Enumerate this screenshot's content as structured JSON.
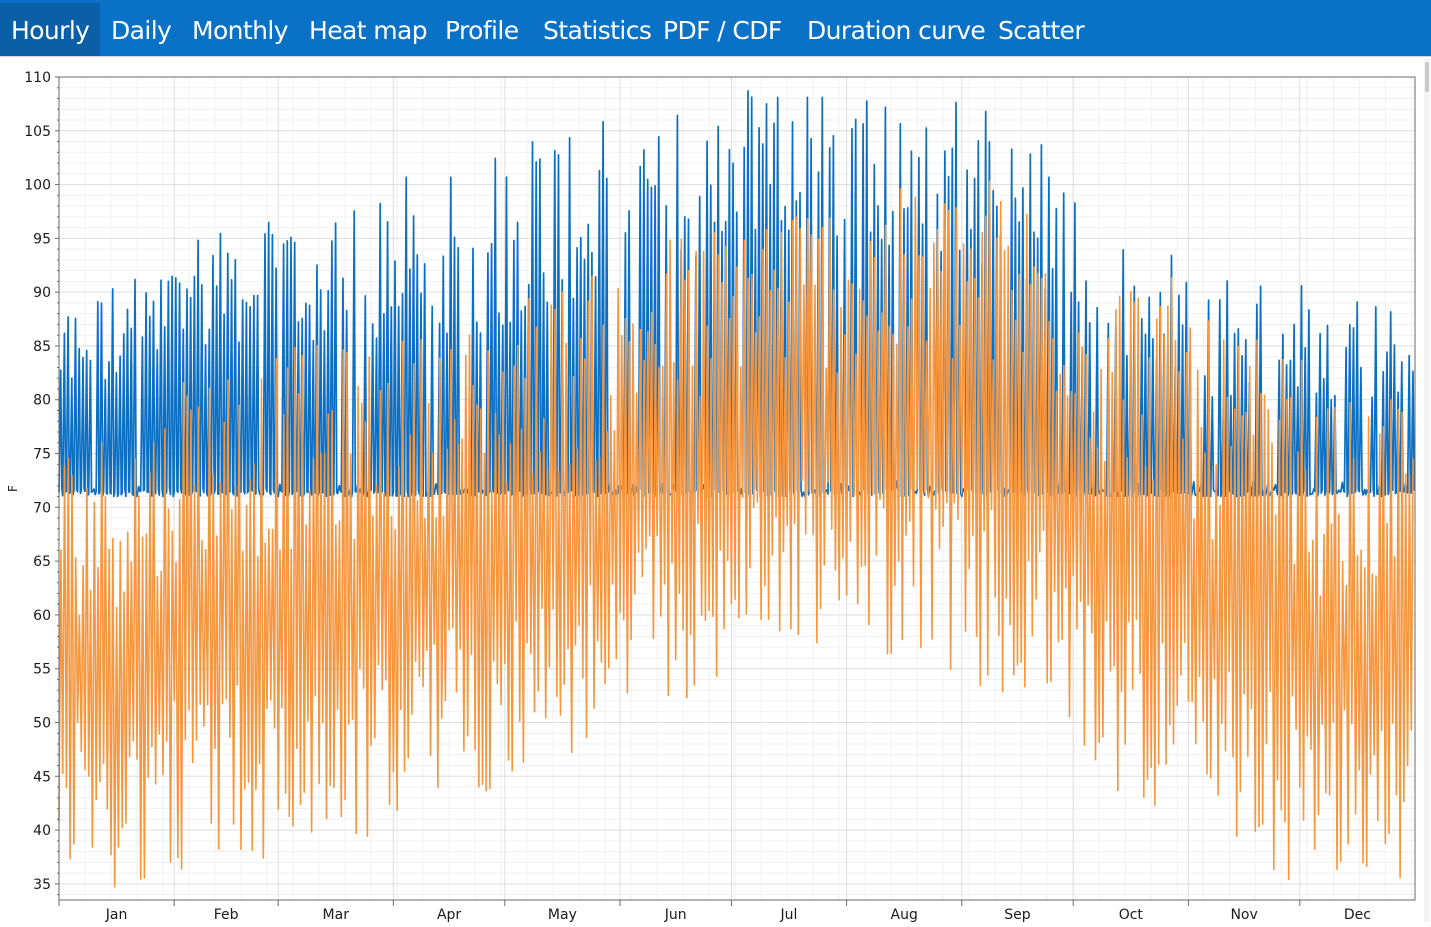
{
  "tabs": [
    {
      "label": "Hourly",
      "active": true
    },
    {
      "label": "Daily",
      "active": false
    },
    {
      "label": "Monthly",
      "active": false
    },
    {
      "label": "Heat map",
      "active": false
    },
    {
      "label": "Profile",
      "active": false
    },
    {
      "label": "Statistics",
      "active": false
    },
    {
      "label": "PDF / CDF",
      "active": false
    },
    {
      "label": "Duration curve",
      "active": false
    },
    {
      "label": "Scatter",
      "active": false
    }
  ],
  "colors": {
    "tabbar": "#0a72c6",
    "tab_active": "#0a5fa6",
    "series_blue": "#0b6fc4",
    "series_orange": "#f8963e"
  },
  "chart_data": {
    "type": "line",
    "ylabel": "F",
    "xlabel": "",
    "ylim": [
      33.5,
      110
    ],
    "yticks": [
      35,
      40,
      45,
      50,
      55,
      60,
      65,
      70,
      75,
      80,
      85,
      90,
      95,
      100,
      105,
      110
    ],
    "months": [
      "Jan",
      "Feb",
      "Mar",
      "Apr",
      "May",
      "Jun",
      "Jul",
      "Aug",
      "Sep",
      "Oct",
      "Nov",
      "Dec"
    ],
    "grid": true,
    "series": [
      {
        "color": "#0b6fc4",
        "description": "hourly values; floor near 71 F with daily peaks",
        "floor": 71,
        "monthly_peak_range": [
          [
            80,
            89
          ],
          [
            85,
            97
          ],
          [
            85,
            96
          ],
          [
            85,
            102
          ],
          [
            88,
            106
          ],
          [
            92,
            106
          ],
          [
            95,
            110
          ],
          [
            94,
            109
          ],
          [
            92,
            109
          ],
          [
            84,
            95
          ],
          [
            80,
            92
          ],
          [
            80,
            90
          ]
        ]
      },
      {
        "color": "#f8963e",
        "description": "hourly values; daily swings",
        "monthly_range": [
          [
            34,
            76
          ],
          [
            36,
            84
          ],
          [
            37,
            85
          ],
          [
            42,
            86
          ],
          [
            45,
            90
          ],
          [
            50,
            95
          ],
          [
            57,
            99
          ],
          [
            57,
            99
          ],
          [
            52,
            102
          ],
          [
            45,
            94
          ],
          [
            36,
            88
          ],
          [
            34,
            80
          ]
        ]
      }
    ]
  }
}
